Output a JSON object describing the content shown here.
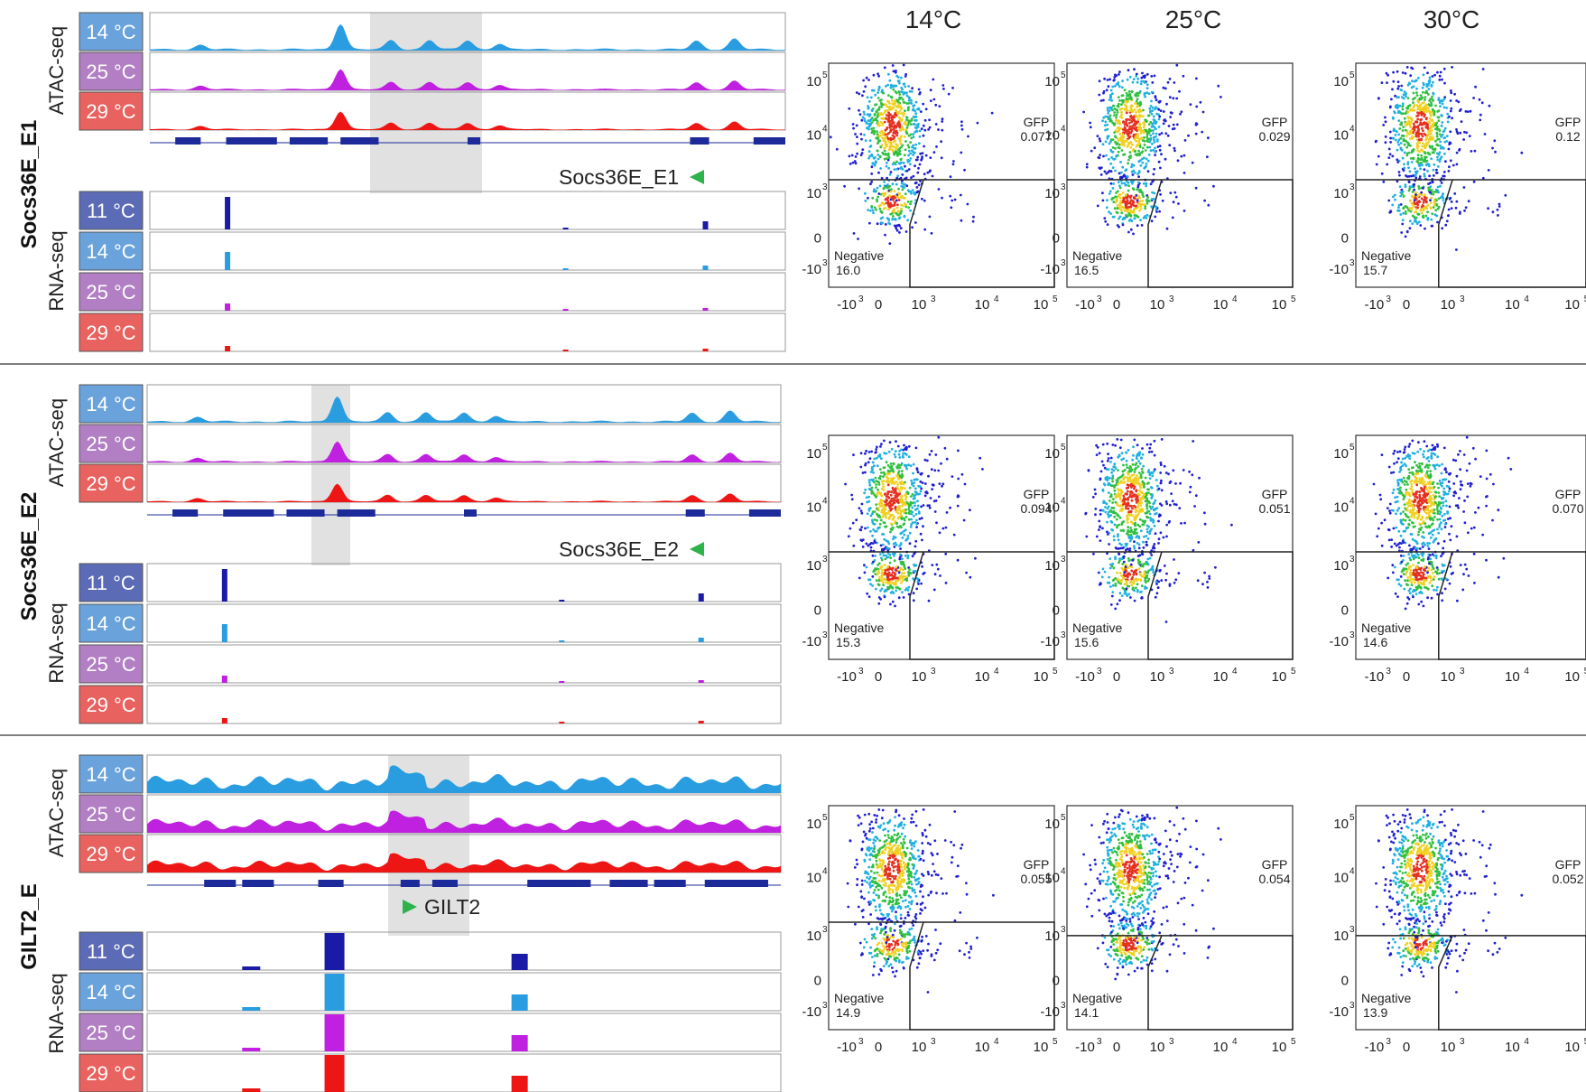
{
  "header": {
    "columns": [
      "14°C",
      "25°C",
      "30°C"
    ]
  },
  "labels": {
    "atac": "ATAC-seq",
    "rna": "RNA-seq"
  },
  "colors": {
    "t11": "#5b6bb5",
    "t14": "#6aa3dc",
    "t25": "#b27fc4",
    "t29": "#e8625f",
    "trk11": "#1a1aa6",
    "trk14": "#2a9de0",
    "trk25": "#c020e0",
    "trk29": "#ee1515",
    "gene": "#1c2a9a",
    "highlight": "#dcdcdc",
    "arrow": "#2db34a"
  },
  "panels": [
    {
      "title": "Socs36E_E1",
      "atac_temps": [
        "14 °C",
        "25 °C",
        "29 °C"
      ],
      "rna_temps": [
        "11 °C",
        "14 °C",
        "25 °C",
        "29 °C"
      ],
      "track_note": "Socs36E_E1",
      "arrow_dir": "left",
      "flow": [
        {
          "gfp_label": "GFP",
          "gfp": "0.077",
          "neg_label": "Negative",
          "neg": "16.0"
        },
        {
          "gfp_label": "GFP",
          "gfp": "0.029",
          "neg_label": "Negative",
          "neg": "16.5"
        },
        {
          "gfp_label": "GFP",
          "gfp": "0.12",
          "neg_label": "Negative",
          "neg": "15.7"
        }
      ]
    },
    {
      "title": "Socs36E_E2",
      "atac_temps": [
        "14 °C",
        "25 °C",
        "29 °C"
      ],
      "rna_temps": [
        "11 °C",
        "14 °C",
        "25 °C",
        "29 °C"
      ],
      "track_note": "Socs36E_E2",
      "arrow_dir": "left",
      "flow": [
        {
          "gfp_label": "GFP",
          "gfp": "0.094",
          "neg_label": "Negative",
          "neg": "15.3"
        },
        {
          "gfp_label": "GFP",
          "gfp": "0.051",
          "neg_label": "Negative",
          "neg": "15.6"
        },
        {
          "gfp_label": "GFP",
          "gfp": "0.070",
          "neg_label": "Negative",
          "neg": "14.6"
        }
      ]
    },
    {
      "title": "GILT2_E",
      "atac_temps": [
        "14 °C",
        "25 °C",
        "29 °C"
      ],
      "rna_temps": [
        "11 °C",
        "14 °C",
        "25 °C",
        "29 °C"
      ],
      "track_note": "GILT2",
      "arrow_dir": "right",
      "flow": [
        {
          "gfp_label": "GFP",
          "gfp": "0.055",
          "neg_label": "Negative",
          "neg": "14.9"
        },
        {
          "gfp_label": "GFP",
          "gfp": "0.054",
          "neg_label": "Negative",
          "neg": "14.1"
        },
        {
          "gfp_label": "GFP",
          "gfp": "0.052",
          "neg_label": "Negative",
          "neg": "13.9"
        }
      ]
    }
  ],
  "chart_data": {
    "type": "scatter",
    "xscale": "biexponential",
    "yscale": "biexponential",
    "tick_labels": [
      "-10",
      "0",
      "10",
      "10",
      "10"
    ],
    "tick_exponents": [
      "3",
      "",
      "3",
      "4",
      "5"
    ],
    "populations": [
      "GFP",
      "Negative"
    ]
  }
}
